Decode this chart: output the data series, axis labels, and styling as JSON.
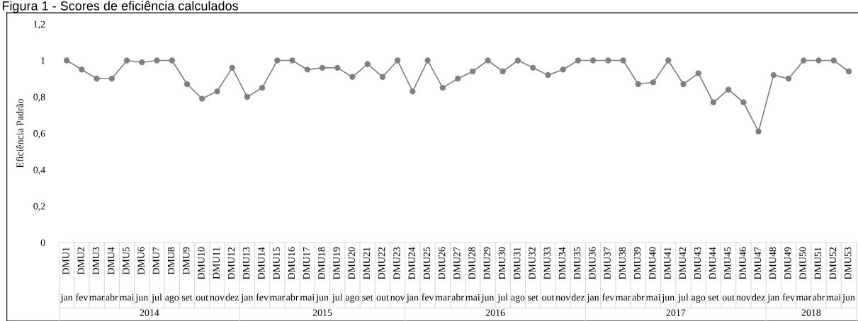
{
  "chart_data": {
    "type": "line",
    "title": "Figura 1 - Scores de eficiência calculados",
    "ylabel": "Eficiência Padrão",
    "categories": [
      "DMU1",
      "DMU2",
      "DMU3",
      "DMU4",
      "DMU5",
      "DMU6",
      "DMU7",
      "DMU8",
      "DMU9",
      "DMU10",
      "DMU11",
      "DMU12",
      "DMU13",
      "DMU14",
      "DMU15",
      "DMU16",
      "DMU17",
      "DMU18",
      "DMU19",
      "DMU20",
      "DMU21",
      "DMU22",
      "DMU23",
      "DMU24",
      "DMU25",
      "DMU26",
      "DMU27",
      "DMU28",
      "DMU29",
      "DMU30",
      "DMU31",
      "DMU32",
      "DMU33",
      "DMU34",
      "DMU35",
      "DMU36",
      "DMU37",
      "DMU38",
      "DMU39",
      "DMU40",
      "DMU41",
      "DMU42",
      "DMU43",
      "DMU44",
      "DMU45",
      "DMU46",
      "DMU47",
      "DMU48",
      "DMU49",
      "DMU50",
      "DMU51",
      "DMU52",
      "DMU53"
    ],
    "series": [
      {
        "color": "#808080",
        "values": [
          1.0,
          0.95,
          0.9,
          0.9,
          1.0,
          0.99,
          1.0,
          1.0,
          0.87,
          0.79,
          0.83,
          0.96,
          0.8,
          0.85,
          1.0,
          1.0,
          0.95,
          0.96,
          0.96,
          0.91,
          0.98,
          0.91,
          1.0,
          0.83,
          1.0,
          0.85,
          0.9,
          0.94,
          1.0,
          0.94,
          1.0,
          0.96,
          0.92,
          0.95,
          1.0,
          1.0,
          1.0,
          1.0,
          0.87,
          0.88,
          1.0,
          0.87,
          0.93,
          0.77,
          0.84,
          0.77,
          0.61,
          0.92,
          0.9,
          1.0,
          1.0,
          1.0,
          0.94
        ]
      }
    ],
    "ylim": [
      0,
      1.2
    ],
    "yticks": [
      0,
      {
        "value": 0.2,
        "label": "0,2"
      },
      {
        "value": 0.4,
        "label": "0,4"
      },
      {
        "value": 0.6,
        "label": "0,6"
      },
      {
        "value": 0.8,
        "label": "0,8"
      },
      1,
      {
        "value": 1.2,
        "label": "1,2"
      }
    ],
    "grid": false,
    "legend": false,
    "marker": "circle",
    "line_style": "solid",
    "annotations": [
      "jan",
      "fev",
      "mar",
      "abr",
      "mai",
      "jun",
      "jul",
      "ago",
      "set",
      "out",
      "nov",
      "dez",
      "jan",
      "fev",
      "mar",
      "abr",
      "mai",
      "jun",
      "jul",
      "ago",
      "set",
      "out",
      "nov",
      "jan",
      "fev",
      "mar",
      "abr",
      "mai",
      "jun",
      "jul",
      "ago",
      "set",
      "out",
      "nov",
      "dez",
      "jan",
      "fev",
      "mar",
      "abr",
      "mai",
      "jun",
      "jul",
      "ago",
      "set",
      "out",
      "nov",
      "dez",
      "jan",
      "fev",
      "mar",
      "abr",
      "mai",
      "jun",
      "2014",
      "2015",
      "2016",
      "2017",
      "2018"
    ]
  }
}
